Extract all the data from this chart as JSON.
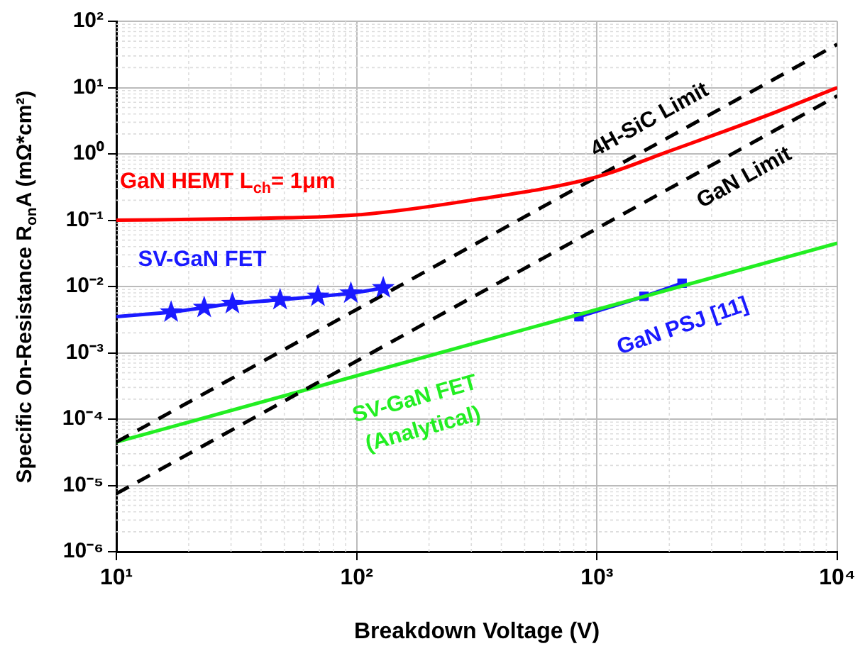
{
  "chart_data": {
    "type": "line",
    "xlabel": "Breakdown Voltage (V)",
    "ylabel": "Specific On-Resistance R$_{on}$A (mΩ*cm²)",
    "log": "xy",
    "grid": true,
    "legend": false,
    "xlim": [
      10,
      10000
    ],
    "ylim": [
      1e-06,
      100
    ],
    "xticks": [
      {
        "value": 10,
        "label": "10¹"
      },
      {
        "value": 100,
        "label": "10²"
      },
      {
        "value": 1000,
        "label": "10³"
      },
      {
        "value": 10000,
        "label": "10⁴"
      }
    ],
    "yticks": [
      {
        "value": 1e-06,
        "label": "10⁻⁶"
      },
      {
        "value": 1e-05,
        "label": "10⁻⁵"
      },
      {
        "value": 0.0001,
        "label": "10⁻⁴"
      },
      {
        "value": 0.001,
        "label": "10⁻³"
      },
      {
        "value": 0.01,
        "label": "10⁻²"
      },
      {
        "value": 0.1,
        "label": "10⁻¹"
      },
      {
        "value": 1,
        "label": "10⁰"
      },
      {
        "value": 10,
        "label": "10¹"
      },
      {
        "value": 100,
        "label": "10²"
      }
    ],
    "series": [
      {
        "name": "GaN HEMT L$_{ch}$= 1μm",
        "color": "#ff0000",
        "marker": "none",
        "line_style": "solid",
        "x": [
          10,
          30,
          100,
          300,
          1000,
          2000,
          5000,
          10000
        ],
        "values": [
          0.1,
          0.105,
          0.12,
          0.2,
          0.45,
          1.1,
          3.7,
          10
        ]
      },
      {
        "name": "4H-SiC Limit",
        "color": "#000000",
        "marker": "none",
        "line_style": "dashed",
        "x": [
          10,
          10000
        ],
        "values": [
          4.5e-05,
          45
        ]
      },
      {
        "name": "GaN Limit",
        "color": "#000000",
        "marker": "none",
        "line_style": "dashed",
        "x": [
          10,
          10000
        ],
        "values": [
          7.5e-06,
          7.5
        ]
      },
      {
        "name": "SV-GaN FET\n(Analytical)",
        "color": "#22ee22",
        "marker": "none",
        "line_style": "solid",
        "x": [
          10,
          10000
        ],
        "values": [
          4.5e-05,
          0.045
        ]
      },
      {
        "name": "SV-GaN FET",
        "color": "#1a1aff",
        "marker": "star",
        "line_style": "solid",
        "x": [
          16.9,
          23.2,
          30.4,
          48,
          69,
          94.6,
          129
        ],
        "values": [
          0.0041,
          0.0048,
          0.0055,
          0.0063,
          0.0071,
          0.0079,
          0.0095
        ]
      },
      {
        "name": "GaN PSJ [11]",
        "color": "#1a1aff",
        "marker": "square",
        "line_style": "solid",
        "x": [
          841,
          1570,
          2260
        ],
        "values": [
          0.0035,
          0.0071,
          0.0112
        ]
      },
      {
        "color": "#1a1aff",
        "marker": "none",
        "line_style": "solid",
        "x": [
          10,
          16.9
        ],
        "values": [
          0.0035,
          0.0041
        ]
      }
    ]
  }
}
